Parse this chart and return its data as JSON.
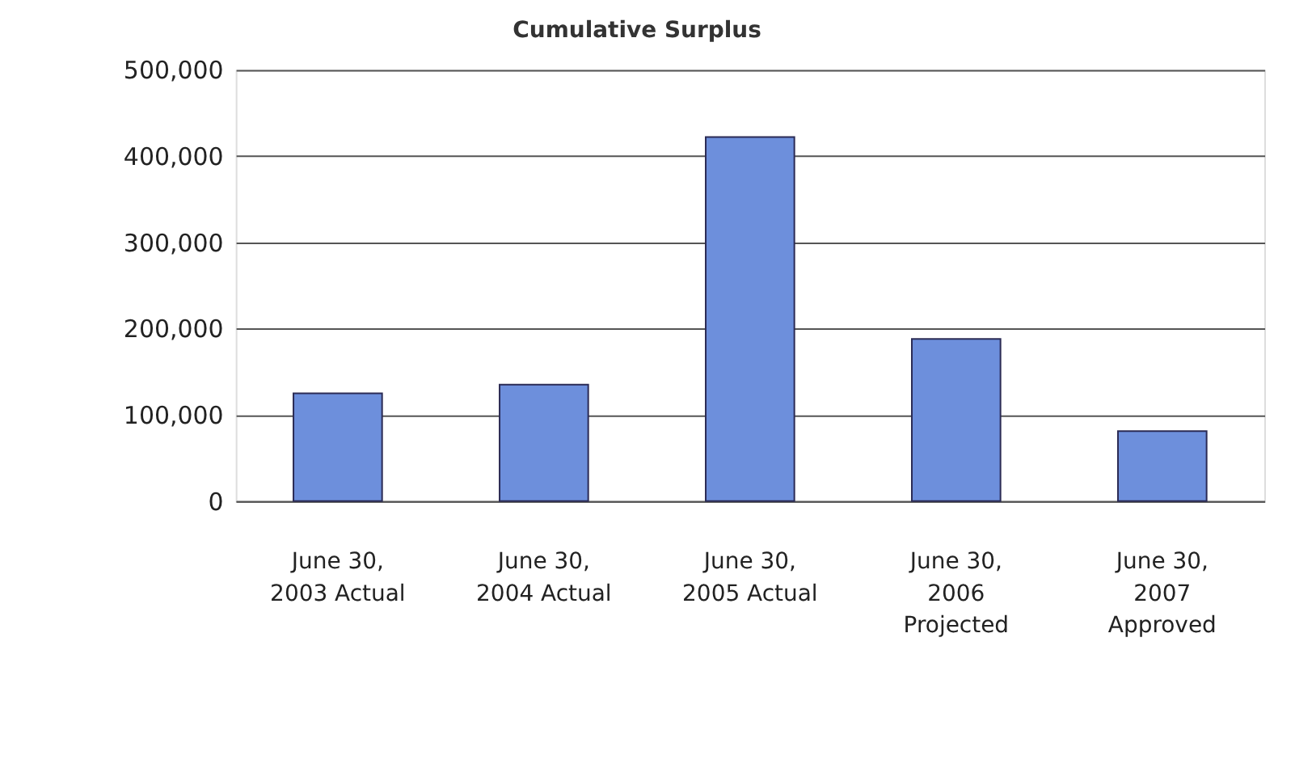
{
  "chart_data": {
    "type": "bar",
    "title": "Cumulative Surplus",
    "categories": [
      "June 30, 2003 Actual",
      "June 30, 2004 Actual",
      "June 30, 2005 Actual",
      "June 30, 2006 Projected",
      "June 30, 2007 Approved"
    ],
    "values": [
      125000,
      135000,
      422000,
      188000,
      81000
    ],
    "color": "#6d8fdc",
    "ylim": [
      0,
      500000
    ],
    "yticks": [
      0,
      {
        "value": 100000,
        "label": "100,000"
      },
      {
        "value": 200000,
        "label": "200,000"
      },
      {
        "value": 300000,
        "label": "300,000"
      },
      {
        "value": 400000,
        "label": "400,000"
      },
      {
        "value": 500000,
        "label": "500,000"
      }
    ],
    "grid": "y"
  }
}
